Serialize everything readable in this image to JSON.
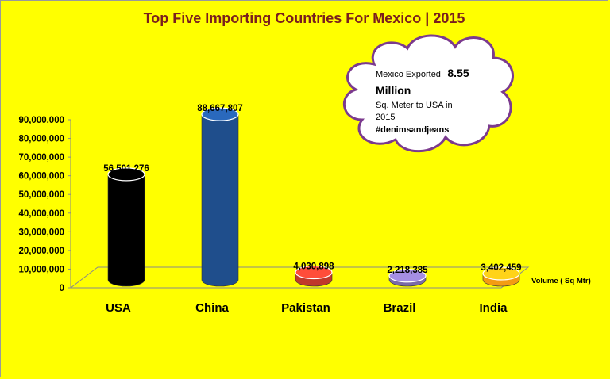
{
  "chart_data": {
    "type": "bar",
    "title": "Top Five Importing Countries For Mexico | 2015",
    "categories": [
      "USA",
      "China",
      "Pakistan",
      "Brazil",
      "India"
    ],
    "values": [
      56501276,
      88667807,
      4030898,
      2218385,
      3402459
    ],
    "value_labels": [
      "56,501,276",
      "88,667,807",
      "4,030,898",
      "2,218,385",
      "3,402,459"
    ],
    "colors": [
      "#000000",
      "#1f4e8c",
      "#c0392b",
      "#7a6aa8",
      "#f39c12"
    ],
    "ylim": [
      0,
      90000000
    ],
    "yticks": [
      "0",
      "10,000,000",
      "20,000,000",
      "30,000,000",
      "40,000,000",
      "50,000,000",
      "60,000,000",
      "70,000,000",
      "80,000,000",
      "90,000,000"
    ],
    "unit_label": "Volume ( Sq Mtr)",
    "grid": false,
    "legend": "none"
  },
  "callout": {
    "line1_prefix": "Mexico Exported",
    "line1_value": "8.55",
    "line2": "Million",
    "line3": "Sq. Meter to USA in",
    "line4": "2015",
    "hashtag": "#denimsandjeans"
  }
}
